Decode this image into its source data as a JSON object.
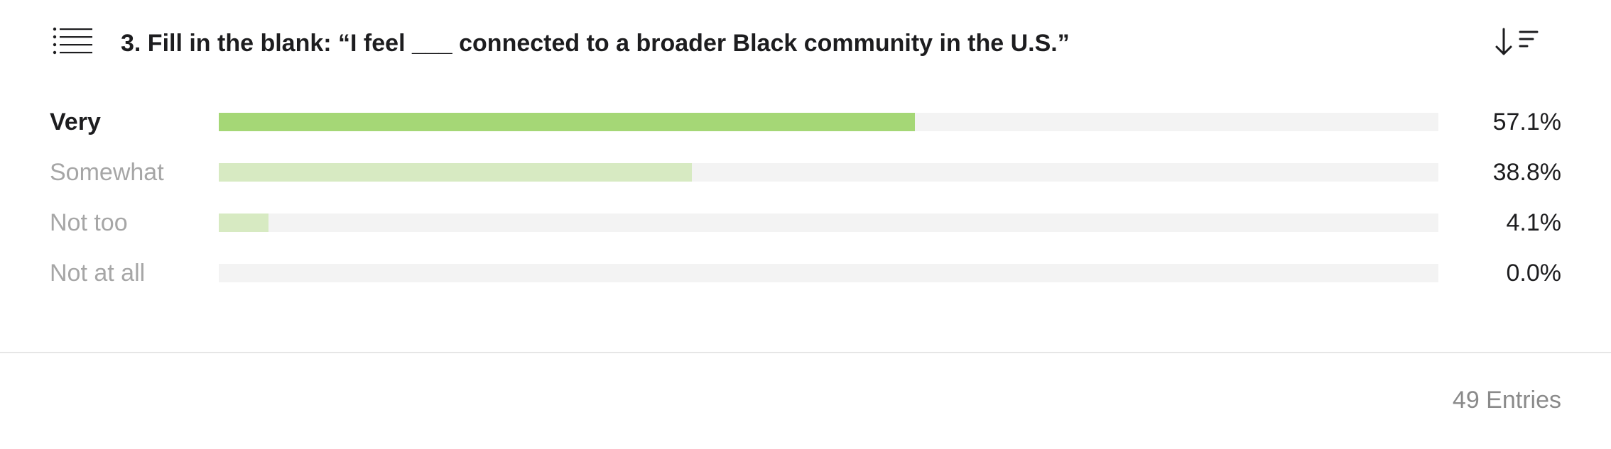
{
  "question": {
    "title": "3. Fill in the blank: “I feel ___ connected to a broader Black community in the U.S.”",
    "list_icon": "list-icon",
    "sort_icon": "sort-descending-icon"
  },
  "colors": {
    "top_bar": "#a5d776",
    "other_bar": "#d7eac2",
    "track": "#f3f3f3",
    "top_label": "#1d1d1f",
    "other_label": "#a6a6a6"
  },
  "chart_data": {
    "type": "bar",
    "orientation": "horizontal",
    "categories": [
      "Very",
      "Somewhat",
      "Not too",
      "Not at all"
    ],
    "values": [
      57.1,
      38.8,
      4.1,
      0.0
    ],
    "value_labels": [
      "57.1%",
      "38.8%",
      "4.1%",
      "0.0%"
    ],
    "xlim": [
      0,
      100
    ],
    "grid": false
  },
  "footer": {
    "entries": "49 Entries"
  }
}
